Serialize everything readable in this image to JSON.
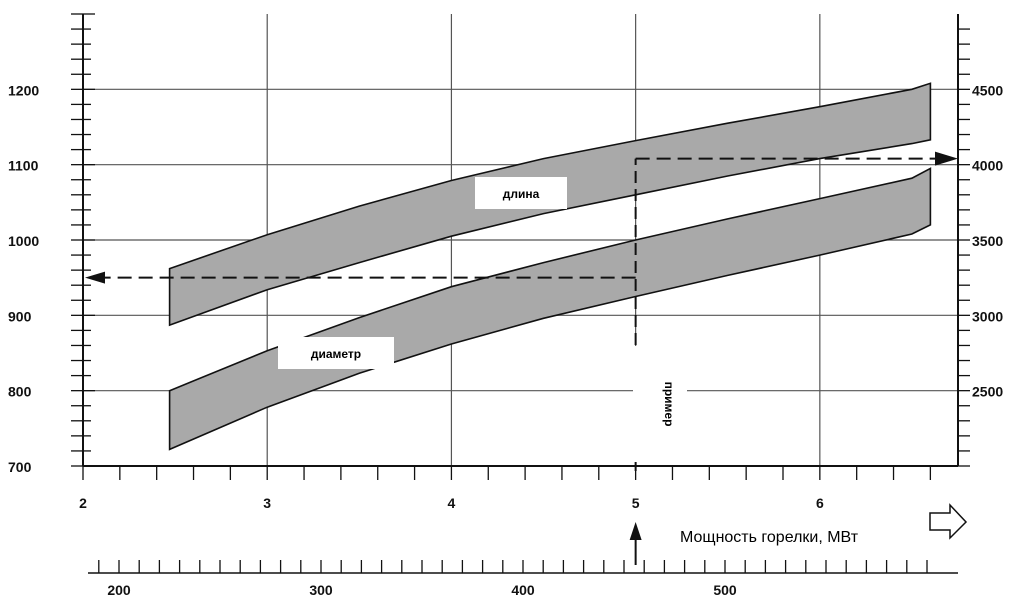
{
  "chart_data": {
    "type": "area",
    "xlabel": "Мощность горелки, МВт",
    "x_range": [
      2,
      6.75
    ],
    "x_ticks": [
      2,
      3,
      4,
      5,
      6
    ],
    "left_axis": {
      "ylim": [
        700,
        1300
      ],
      "ticks": [
        700,
        800,
        900,
        1000,
        1100,
        1200
      ]
    },
    "right_axis": {
      "ticks": [
        2500,
        3000,
        3500,
        4000,
        4500
      ]
    },
    "secondary_x_axis": {
      "ticks": [
        200,
        300,
        400,
        500
      ]
    },
    "series": [
      {
        "name": "длина",
        "x": [
          2.47,
          3.0,
          3.5,
          4.0,
          4.5,
          5.0,
          5.5,
          6.0,
          6.5,
          6.6
        ],
        "upper": [
          962,
          1007,
          1045,
          1079,
          1108,
          1132,
          1155,
          1177,
          1200,
          1208
        ],
        "lower": [
          887,
          934,
          970,
          1005,
          1035,
          1060,
          1085,
          1108,
          1128,
          1133
        ]
      },
      {
        "name": "диаметр",
        "x": [
          2.47,
          3.0,
          3.5,
          4.0,
          4.5,
          5.0,
          5.5,
          6.0,
          6.5,
          6.6
        ],
        "upper": [
          800,
          853,
          897,
          938,
          970,
          1000,
          1028,
          1055,
          1082,
          1095
        ],
        "lower": [
          722,
          778,
          823,
          862,
          896,
          925,
          953,
          980,
          1008,
          1020
        ]
      }
    ],
    "annotations": {
      "length_label": "длина",
      "diameter_label": "диаметр",
      "example_label": "пример",
      "example_x": 5,
      "example_left_y": 950,
      "example_right_y": 1108
    }
  },
  "icons": {
    "axis_arrow": "outline-right-arrow-icon"
  }
}
